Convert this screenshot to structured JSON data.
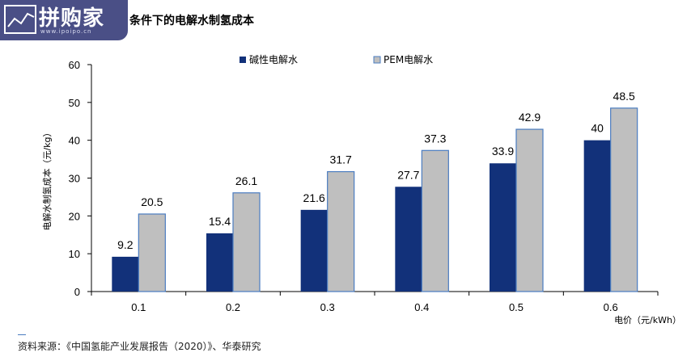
{
  "watermark": {
    "logo_text": "拼购家",
    "url": "www.ipoipo.cn"
  },
  "title": "条件下的电解水制氢成本",
  "source": "资料来源：《中国氢能产业发展报告（2020）》、华泰研究",
  "colors": {
    "alkaline": "#12317a",
    "pem": "#bfbfbf",
    "pem_border": "#4a7cc0",
    "axis": "#000000"
  },
  "chart_data": {
    "type": "bar",
    "categories": [
      "0.1",
      "0.2",
      "0.3",
      "0.4",
      "0.5",
      "0.6"
    ],
    "series": [
      {
        "name": "碱性电解水",
        "values": [
          9.2,
          15.4,
          21.6,
          27.7,
          33.9,
          40
        ]
      },
      {
        "name": "PEM电解水",
        "values": [
          20.5,
          26.1,
          31.7,
          37.3,
          42.9,
          48.5
        ]
      }
    ],
    "data_labels": [
      [
        "9.2",
        "15.4",
        "21.6",
        "27.7",
        "33.9",
        "40"
      ],
      [
        "20.5",
        "26.1",
        "31.7",
        "37.3",
        "42.9",
        "48.5"
      ]
    ],
    "xlabel": "电价（元/kWh）",
    "ylabel": "电解水制氢成本（元/kg）",
    "ylim": [
      0,
      60
    ],
    "yticks": [
      0,
      10,
      20,
      30,
      40,
      50,
      60
    ],
    "legend_position": "top",
    "grid": false
  }
}
